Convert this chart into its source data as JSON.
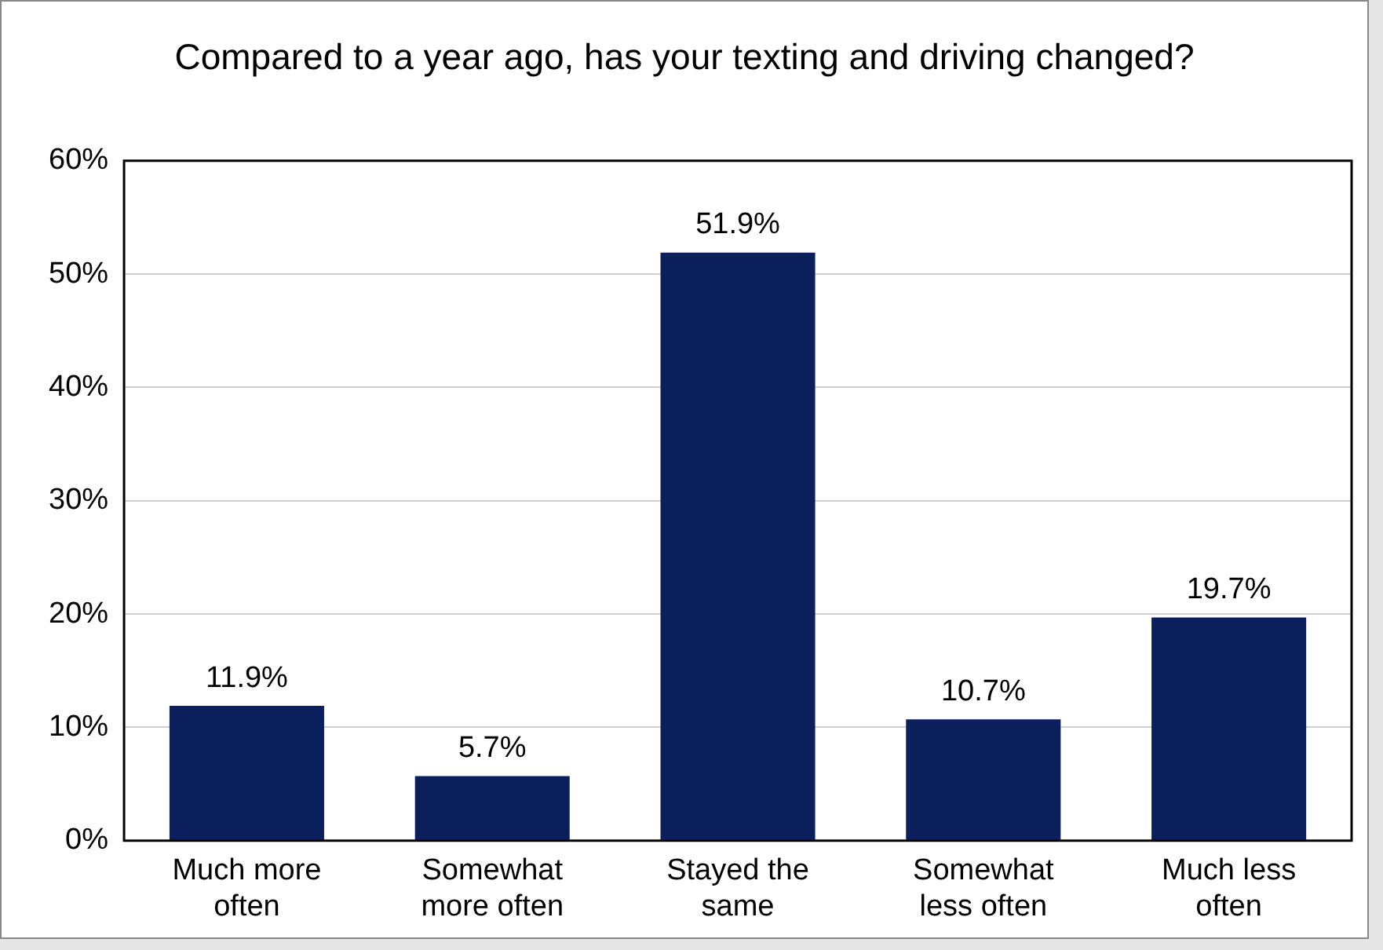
{
  "chart_data": {
    "type": "bar",
    "title": "Compared to a year ago, has your texting and driving changed?",
    "categories": [
      "Much more often",
      "Somewhat more often",
      "Stayed the same",
      "Somewhat less often",
      "Much less often"
    ],
    "values": [
      11.9,
      5.7,
      51.9,
      10.7,
      19.7
    ],
    "value_labels": [
      "11.9%",
      "5.7%",
      "51.9%",
      "10.7%",
      "19.7%"
    ],
    "color": "#0b1f5c",
    "ylim": [
      0,
      60
    ],
    "yticks": [
      {
        "value": 0,
        "label": "0%"
      },
      {
        "value": 10,
        "label": "10%"
      },
      {
        "value": 20,
        "label": "20%"
      },
      {
        "value": 30,
        "label": "30%"
      },
      {
        "value": 40,
        "label": "40%"
      },
      {
        "value": 50,
        "label": "50%"
      },
      {
        "value": 60,
        "label": "60%"
      }
    ],
    "grid": "y",
    "legend": false
  }
}
